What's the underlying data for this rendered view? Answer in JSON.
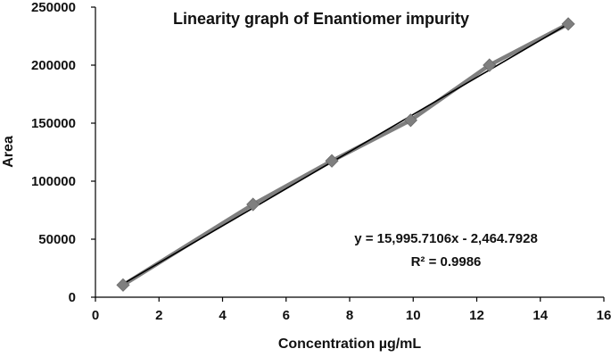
{
  "chart_data": {
    "type": "scatter",
    "title": "Linearity graph of Enantiomer impurity",
    "xlabel": "Concentration µg/mL",
    "ylabel": "Area",
    "xlim": [
      0,
      16
    ],
    "ylim": [
      0,
      250000
    ],
    "xticks": [
      "0",
      "2",
      "4",
      "6",
      "8",
      "10",
      "12",
      "14",
      "16"
    ],
    "yticks": [
      "0",
      "50000",
      "100000",
      "150000",
      "200000",
      "250000"
    ],
    "grid": false,
    "series": [
      {
        "x": [
          0.87,
          4.96,
          7.44,
          9.92,
          12.4,
          14.88
        ],
        "y": [
          10500,
          80000,
          117500,
          152500,
          200000,
          235500
        ],
        "color": "#7f7f7f",
        "marker": "diamond",
        "connect": true
      }
    ],
    "trendline": {
      "slope": 15995.7106,
      "intercept": -2464.7928,
      "color": "#000000"
    },
    "annotations": {
      "equation": "y = 15,995.7106x - 2,464.7928",
      "r_squared": "R² = 0.9986"
    }
  }
}
